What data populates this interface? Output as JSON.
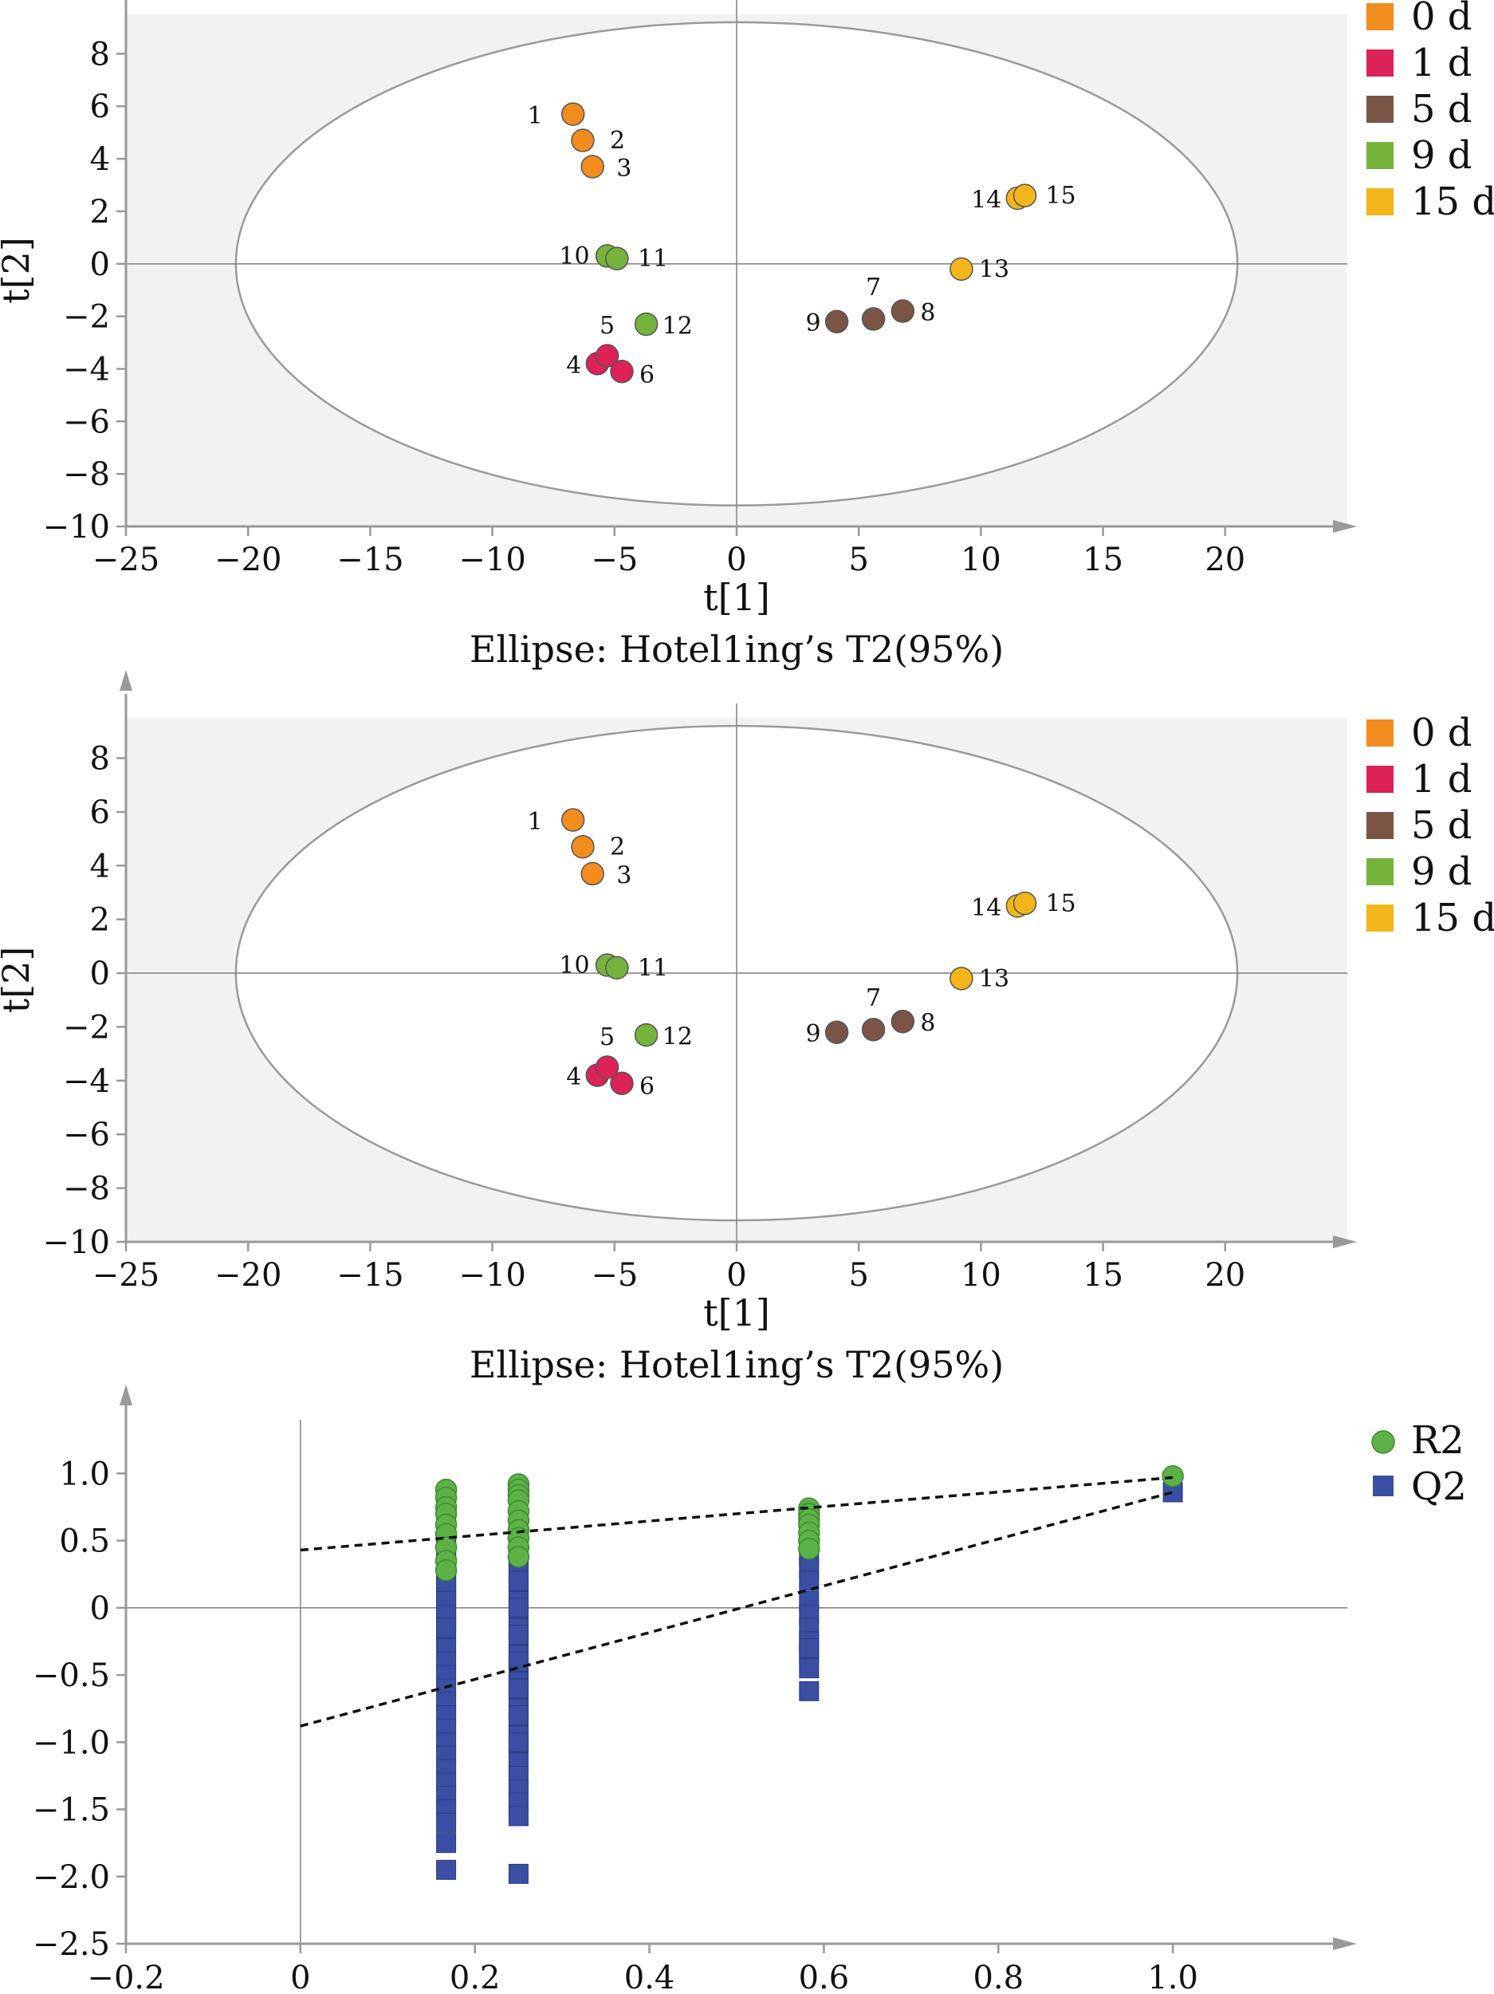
{
  "colors": {
    "0 d": "#f28c1c",
    "1 d": "#dc2257",
    "5 d": "#7a5546",
    "9 d": "#76b33c",
    "15 d": "#f2b61b",
    "R2": "#5cb246",
    "Q2": "#3a4fa3"
  },
  "chart_data": [
    {
      "type": "scatter",
      "xlabel": "t[1]",
      "ylabel": "t[2]",
      "caption": "Ellipse: Hotel1ing’s T2(95%)",
      "xlim": [
        -25,
        25
      ],
      "ylim": [
        -10,
        9.5
      ],
      "xticks": [
        -25,
        -20,
        -15,
        -10,
        -5,
        0,
        5,
        10,
        15,
        20
      ],
      "yticks": [
        -10,
        -8,
        -6,
        -4,
        -2,
        0,
        2,
        4,
        6,
        8
      ],
      "xtick_labels": [
        "−25",
        "−20",
        "−15",
        "−10",
        "−5",
        "0",
        "5",
        "10",
        "15",
        "20"
      ],
      "ytick_labels": [
        "−10",
        "−8",
        "−6",
        "−4",
        "−2",
        "0",
        "2",
        "4",
        "6",
        "8"
      ],
      "ellipse": {
        "cx": 0,
        "cy": 0,
        "rx": 20.5,
        "ry": 9.2
      },
      "legend_position": "right",
      "legend": [
        "0 d",
        "1 d",
        "5 d",
        "9 d",
        "15 d"
      ],
      "points": [
        {
          "label": "1",
          "group": "0 d",
          "x": -6.7,
          "y": 5.7
        },
        {
          "label": "2",
          "group": "0 d",
          "x": -6.3,
          "y": 4.7
        },
        {
          "label": "3",
          "group": "0 d",
          "x": -5.9,
          "y": 3.7
        },
        {
          "label": "4",
          "group": "1 d",
          "x": -5.7,
          "y": -3.8
        },
        {
          "label": "5",
          "group": "1 d",
          "x": -5.3,
          "y": -3.5
        },
        {
          "label": "6",
          "group": "1 d",
          "x": -4.7,
          "y": -4.1
        },
        {
          "label": "7",
          "group": "5 d",
          "x": 5.6,
          "y": -2.1
        },
        {
          "label": "8",
          "group": "5 d",
          "x": 6.8,
          "y": -1.8
        },
        {
          "label": "9",
          "group": "5 d",
          "x": 4.1,
          "y": -2.2
        },
        {
          "label": "10",
          "group": "9 d",
          "x": -5.3,
          "y": 0.3
        },
        {
          "label": "11",
          "group": "9 d",
          "x": -4.9,
          "y": 0.2
        },
        {
          "label": "12",
          "group": "9 d",
          "x": -3.7,
          "y": -2.3
        },
        {
          "label": "13",
          "group": "15 d",
          "x": 9.2,
          "y": -0.2
        },
        {
          "label": "14",
          "group": "15 d",
          "x": 11.5,
          "y": 2.5
        },
        {
          "label": "15",
          "group": "15 d",
          "x": 11.8,
          "y": 2.6
        }
      ]
    },
    {
      "type": "scatter",
      "xlabel": "t[1]",
      "ylabel": "t[2]",
      "caption": "Ellipse: Hotel1ing’s T2(95%)",
      "xlim": [
        -25,
        25
      ],
      "ylim": [
        -10,
        9.5
      ],
      "xticks": [
        -25,
        -20,
        -15,
        -10,
        -5,
        0,
        5,
        10,
        15,
        20
      ],
      "yticks": [
        -10,
        -8,
        -6,
        -4,
        -2,
        0,
        2,
        4,
        6,
        8
      ],
      "xtick_labels": [
        "−25",
        "−20",
        "−15",
        "−10",
        "−5",
        "0",
        "5",
        "10",
        "15",
        "20"
      ],
      "ytick_labels": [
        "−10",
        "−8",
        "−6",
        "−4",
        "−2",
        "0",
        "2",
        "4",
        "6",
        "8"
      ],
      "ellipse": {
        "cx": 0,
        "cy": 0,
        "rx": 20.5,
        "ry": 9.2
      },
      "legend_position": "right",
      "legend": [
        "0 d",
        "1 d",
        "5 d",
        "9 d",
        "15 d"
      ],
      "points": [
        {
          "label": "1",
          "group": "0 d",
          "x": -6.7,
          "y": 5.7
        },
        {
          "label": "2",
          "group": "0 d",
          "x": -6.3,
          "y": 4.7
        },
        {
          "label": "3",
          "group": "0 d",
          "x": -5.9,
          "y": 3.7
        },
        {
          "label": "4",
          "group": "1 d",
          "x": -5.7,
          "y": -3.8
        },
        {
          "label": "5",
          "group": "1 d",
          "x": -5.3,
          "y": -3.5
        },
        {
          "label": "6",
          "group": "1 d",
          "x": -4.7,
          "y": -4.1
        },
        {
          "label": "7",
          "group": "5 d",
          "x": 5.6,
          "y": -2.1
        },
        {
          "label": "8",
          "group": "5 d",
          "x": 6.8,
          "y": -1.8
        },
        {
          "label": "9",
          "group": "5 d",
          "x": 4.1,
          "y": -2.2
        },
        {
          "label": "10",
          "group": "9 d",
          "x": -5.3,
          "y": 0.3
        },
        {
          "label": "11",
          "group": "9 d",
          "x": -4.9,
          "y": 0.2
        },
        {
          "label": "12",
          "group": "9 d",
          "x": -3.7,
          "y": -2.3
        },
        {
          "label": "13",
          "group": "15 d",
          "x": 9.2,
          "y": -0.2
        },
        {
          "label": "14",
          "group": "15 d",
          "x": 11.5,
          "y": 2.5
        },
        {
          "label": "15",
          "group": "15 d",
          "x": 11.8,
          "y": 2.6
        }
      ]
    },
    {
      "type": "scatter",
      "xlim": [
        -0.2,
        1.2
      ],
      "ylim": [
        -2.5,
        1.4
      ],
      "xticks": [
        -0.2,
        0,
        0.2,
        0.4,
        0.6,
        0.8,
        1.0
      ],
      "yticks": [
        1.0,
        0.5,
        0,
        -0.5,
        -1.0,
        -1.5,
        -2.0,
        -2.5
      ],
      "xtick_labels": [
        "−0.2",
        "0",
        "0.2",
        "0.4",
        "0.6",
        "0.8",
        "1.0"
      ],
      "ytick_labels": [
        "1.0",
        "0.5",
        "0",
        "−0.5",
        "−1.0",
        "−1.5",
        "−2.0",
        "−2.5"
      ],
      "legend_position": "top-right",
      "series": [
        {
          "name": "R2",
          "marker": "circle",
          "x": [
            0.167,
            0.167,
            0.167,
            0.167,
            0.167,
            0.167,
            0.167,
            0.167,
            0.167,
            0.25,
            0.25,
            0.25,
            0.25,
            0.25,
            0.25,
            0.25,
            0.25,
            0.25,
            0.25,
            0.583,
            0.583,
            0.583,
            0.583,
            0.583,
            0.583,
            0.583,
            1.0
          ],
          "y": [
            0.88,
            0.82,
            0.75,
            0.7,
            0.62,
            0.55,
            0.45,
            0.35,
            0.28,
            0.92,
            0.88,
            0.84,
            0.8,
            0.72,
            0.65,
            0.58,
            0.52,
            0.45,
            0.38,
            0.74,
            0.7,
            0.66,
            0.62,
            0.56,
            0.5,
            0.44,
            0.98
          ]
        },
        {
          "name": "Q2",
          "marker": "square",
          "x": [
            0.167,
            0.167,
            0.167,
            0.167,
            0.167,
            0.167,
            0.167,
            0.167,
            0.167,
            0.167,
            0.167,
            0.167,
            0.167,
            0.167,
            0.167,
            0.167,
            0.167,
            0.167,
            0.167,
            0.167,
            0.167,
            0.167,
            0.167,
            0.167,
            0.167,
            0.167,
            0.167,
            0.167,
            0.167,
            0.167,
            0.167,
            0.167,
            0.167,
            0.25,
            0.25,
            0.25,
            0.25,
            0.25,
            0.25,
            0.25,
            0.25,
            0.25,
            0.25,
            0.25,
            0.25,
            0.25,
            0.25,
            0.25,
            0.25,
            0.25,
            0.25,
            0.25,
            0.25,
            0.25,
            0.25,
            0.25,
            0.25,
            0.25,
            0.25,
            0.25,
            0.25,
            0.25,
            0.25,
            0.25,
            0.25,
            0.583,
            0.583,
            0.583,
            0.583,
            0.583,
            0.583,
            0.583,
            0.583,
            0.583,
            0.583,
            0.583,
            1.0
          ],
          "y": [
            0.6,
            0.5,
            0.4,
            0.3,
            0.2,
            0.1,
            0.0,
            -0.1,
            -0.2,
            -0.3,
            -0.4,
            -0.5,
            -0.6,
            -0.7,
            -0.8,
            -0.9,
            -1.0,
            -1.1,
            -1.2,
            -1.3,
            -1.4,
            -1.5,
            -1.6,
            -1.75,
            -1.95,
            0.55,
            0.45,
            0.35,
            0.25,
            0.15,
            0.05,
            -0.05,
            -0.15,
            0.55,
            0.45,
            0.35,
            0.25,
            0.15,
            0.05,
            -0.05,
            -0.15,
            -0.25,
            -0.35,
            -0.45,
            -0.55,
            -0.65,
            -0.75,
            -0.85,
            -0.95,
            -1.05,
            -1.15,
            -1.25,
            -1.35,
            -1.45,
            -1.55,
            -1.98,
            0.6,
            0.4,
            0.2,
            0.0,
            -0.2,
            -0.4,
            -0.6,
            -0.8,
            -1.0,
            0.38,
            0.3,
            0.2,
            0.05,
            -0.05,
            -0.15,
            -0.25,
            -0.35,
            -0.45,
            -0.62,
            -0.3,
            0.86
          ]
        }
      ],
      "trendlines": [
        {
          "series": "R2",
          "x": [
            0,
            1.0
          ],
          "y": [
            0.43,
            0.97
          ]
        },
        {
          "series": "Q2",
          "x": [
            0,
            1.0
          ],
          "y": [
            -0.88,
            0.86
          ]
        }
      ]
    }
  ]
}
